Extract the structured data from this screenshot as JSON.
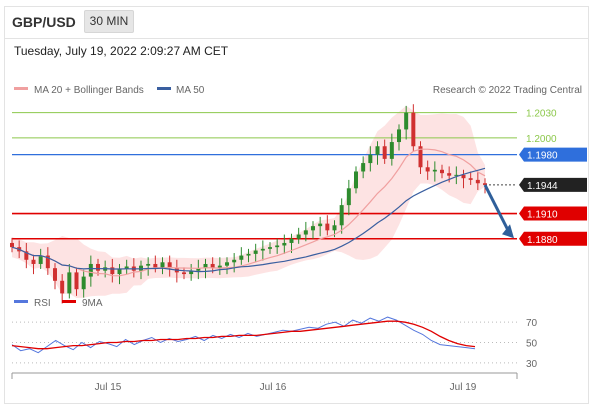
{
  "header": {
    "pair": "GBP/USD",
    "timeframe": "30 MIN",
    "timestamp": "Tuesday, July 19, 2022 2:09:27 AM CET"
  },
  "legend": {
    "ma20_label": "MA 20 + Bollinger Bands",
    "ma50_label": "MA 50",
    "copyright": "Research © 2022 Trading Central",
    "rsi_label": "RSI",
    "rsi_ma_label": "9MA"
  },
  "colors": {
    "ma20": "#f0a0a0",
    "bollinger_fill": "#fde0e0",
    "ma50": "#3a5fa0",
    "resistance": "#8cc84b",
    "pivot": "#2f6fdc",
    "support": "#e00000",
    "current": "#222222",
    "rsi": "#5577dd",
    "rsi_ma": "#e00000",
    "up_candle": "#2e8b2e",
    "down_candle": "#d03030",
    "arrow": "#2f5f9a"
  },
  "chart_data": [
    {
      "type": "candlestick",
      "title": "GBP/USD",
      "xlabel": "",
      "ylabel": "",
      "x_ticks": [
        "Jul 15",
        "Jul 16",
        "Jul 19"
      ],
      "ylim": [
        1.1825,
        1.2045
      ],
      "levels": [
        {
          "name": "resistance_2",
          "value": 1.203,
          "label": "1.2030"
        },
        {
          "name": "resistance_1",
          "value": 1.2,
          "label": "1.2000"
        },
        {
          "name": "pivot",
          "value": 1.198,
          "label": "1.1980"
        },
        {
          "name": "current",
          "value": 1.1944,
          "label": "1.1944"
        },
        {
          "name": "support_1",
          "value": 1.191,
          "label": "1.1910"
        },
        {
          "name": "support_2",
          "value": 1.188,
          "label": "1.1880"
        }
      ],
      "close_series": [
        1.187,
        1.1865,
        1.1855,
        1.185,
        1.186,
        1.1845,
        1.183,
        1.1815,
        1.184,
        1.182,
        1.1835,
        1.185,
        1.1842,
        1.1846,
        1.1838,
        1.1844,
        1.1847,
        1.1842,
        1.1848,
        1.185,
        1.1846,
        1.1852,
        1.1845,
        1.184,
        1.1838,
        1.1842,
        1.1845,
        1.185,
        1.1845,
        1.1848,
        1.1852,
        1.1855,
        1.186,
        1.1862,
        1.1866,
        1.1868,
        1.187,
        1.1872,
        1.1875,
        1.188,
        1.1885,
        1.189,
        1.1895,
        1.1898,
        1.189,
        1.1896,
        1.192,
        1.194,
        1.196,
        1.197,
        1.198,
        1.199,
        1.1975,
        1.1995,
        1.201,
        1.203,
        1.199,
        1.1965,
        1.196,
        1.1962,
        1.1958,
        1.1955,
        1.1956,
        1.1952,
        1.195,
        1.1946,
        1.1944
      ]
    },
    {
      "type": "line",
      "title": "RSI",
      "xlabel": "",
      "ylabel": "",
      "y_ticks": [
        30,
        50,
        70
      ],
      "ylim": [
        25,
        80
      ],
      "series": [
        {
          "name": "RSI",
          "values": [
            48,
            42,
            44,
            40,
            46,
            52,
            47,
            43,
            50,
            45,
            51,
            49,
            46,
            53,
            48,
            52,
            55,
            50,
            54,
            51,
            53,
            56,
            52,
            57,
            54,
            58,
            55,
            59,
            56,
            58,
            60,
            62,
            61,
            63,
            65,
            64,
            68,
            70,
            66,
            72,
            69,
            74,
            71,
            75,
            72,
            67,
            62,
            58,
            52,
            48,
            47,
            46,
            45,
            44
          ]
        },
        {
          "name": "9MA",
          "values": [
            47,
            46,
            45,
            44,
            44,
            45,
            46,
            47,
            47,
            48,
            49,
            50,
            50,
            51,
            51,
            52,
            52,
            53,
            53,
            53,
            54,
            54,
            55,
            55,
            56,
            56,
            57,
            57,
            57,
            58,
            59,
            60,
            61,
            61,
            62,
            63,
            64,
            65,
            66,
            67,
            68,
            69,
            70,
            71,
            71,
            70,
            68,
            65,
            61,
            56,
            52,
            49,
            47,
            46
          ]
        }
      ]
    }
  ]
}
